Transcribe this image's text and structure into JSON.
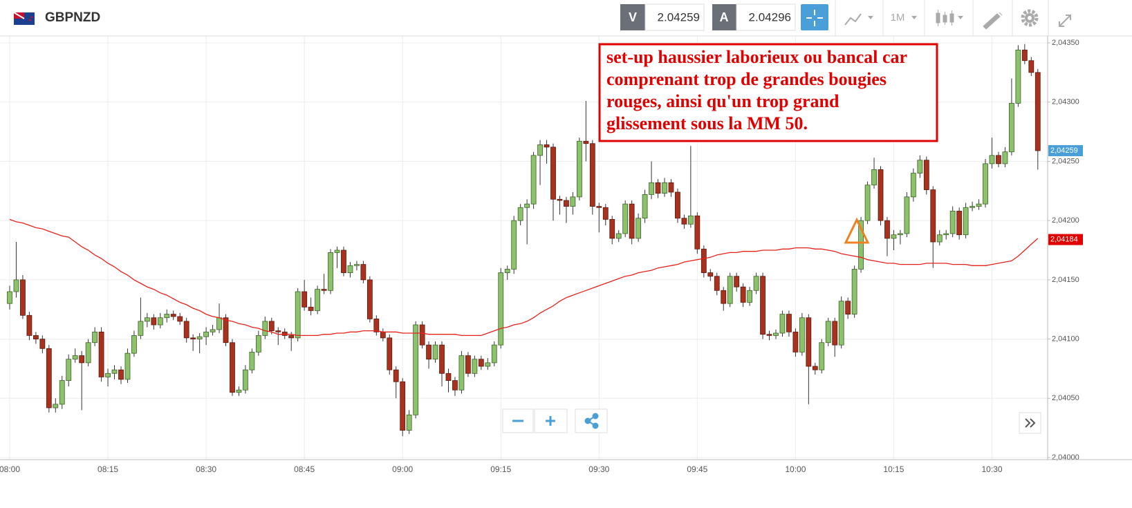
{
  "header": {
    "symbol": "GBPNZD",
    "bid_label": "V",
    "bid": "2.04259",
    "ask_label": "A",
    "ask": "2.04296",
    "timeframe": "1M"
  },
  "chart_data": {
    "type": "candlestick",
    "categories": [
      "08:00",
      null,
      null,
      null,
      null,
      null,
      null,
      null,
      null,
      null,
      null,
      null,
      null,
      null,
      null,
      "08:15",
      null,
      null,
      null,
      null,
      null,
      null,
      null,
      null,
      null,
      null,
      null,
      null,
      null,
      null,
      "08:30",
      null,
      null,
      null,
      null,
      null,
      null,
      null,
      null,
      null,
      null,
      null,
      null,
      null,
      null,
      "08:45",
      null,
      null,
      null,
      null,
      null,
      null,
      null,
      null,
      null,
      null,
      null,
      null,
      null,
      null,
      "09:00",
      null,
      null,
      null,
      null,
      null,
      null,
      null,
      null,
      null,
      null,
      null,
      null,
      null,
      null,
      "09:15",
      null,
      null,
      null,
      null,
      null,
      null,
      null,
      null,
      null,
      null,
      null,
      null,
      null,
      null,
      "09:30",
      null,
      null,
      null,
      null,
      null,
      null,
      null,
      null,
      null,
      null,
      null,
      null,
      null,
      null,
      "09:45",
      null,
      null,
      null,
      null,
      null,
      null,
      null,
      null,
      null,
      null,
      null,
      null,
      null,
      null,
      "10:00",
      null,
      null,
      null,
      null,
      null,
      null,
      null,
      null,
      null,
      null,
      null,
      null,
      null,
      null,
      "10:15",
      null,
      null,
      null,
      null,
      null,
      null,
      null,
      null,
      null,
      null,
      null,
      null,
      null,
      null,
      "10:30",
      null,
      null,
      null,
      null,
      null,
      null,
      null
    ],
    "ohlc": [
      [
        2.0413,
        2.04145,
        2.04125,
        2.0414
      ],
      [
        2.0414,
        2.04182,
        2.04135,
        2.0415
      ],
      [
        2.0415,
        2.04154,
        2.04117,
        2.0412
      ],
      [
        2.0412,
        2.04123,
        2.04099,
        2.04103
      ],
      [
        2.04103,
        2.04106,
        2.04096,
        2.041
      ],
      [
        2.041,
        2.04103,
        2.04088,
        2.04092
      ],
      [
        2.04092,
        2.04095,
        2.04038,
        2.04042
      ],
      [
        2.04042,
        2.0405,
        2.04038,
        2.04045
      ],
      [
        2.04045,
        2.04069,
        2.04041,
        2.04065
      ],
      [
        2.04065,
        2.04087,
        2.0406,
        2.04083
      ],
      [
        2.04083,
        2.04092,
        2.0408,
        2.04086
      ],
      [
        2.04086,
        2.0409,
        2.0404,
        2.0408
      ],
      [
        2.0408,
        2.041,
        2.04077,
        2.04097
      ],
      [
        2.04097,
        2.0411,
        2.04094,
        2.04106
      ],
      [
        2.04106,
        2.0411,
        2.04064,
        2.04068
      ],
      [
        2.04068,
        2.04075,
        2.0406,
        2.04071
      ],
      [
        2.04071,
        2.04078,
        2.04066,
        2.04074
      ],
      [
        2.04074,
        2.04077,
        2.04062,
        2.04066
      ],
      [
        2.04066,
        2.04092,
        2.04063,
        2.04088
      ],
      [
        2.04088,
        2.04107,
        2.04085,
        2.04103
      ],
      [
        2.04103,
        2.04135,
        2.041,
        2.04115
      ],
      [
        2.04115,
        2.04122,
        2.0411,
        2.04118
      ],
      [
        2.04118,
        2.04121,
        2.04108,
        2.04112
      ],
      [
        2.04112,
        2.04122,
        2.04109,
        2.04118
      ],
      [
        2.04118,
        2.04125,
        2.04114,
        2.04121
      ],
      [
        2.04121,
        2.04124,
        2.04116,
        2.04119
      ],
      [
        2.04119,
        2.04122,
        2.04112,
        2.04115
      ],
      [
        2.04115,
        2.04118,
        2.04097,
        2.04101
      ],
      [
        2.04101,
        2.04104,
        2.0409,
        2.041
      ],
      [
        2.041,
        2.04105,
        2.04088,
        2.04102
      ],
      [
        2.04102,
        2.0411,
        2.04095,
        2.04106
      ],
      [
        2.04106,
        2.04112,
        2.04103,
        2.04108
      ],
      [
        2.04108,
        2.0413,
        2.04105,
        2.04118
      ],
      [
        2.04118,
        2.04121,
        2.04094,
        2.04097
      ],
      [
        2.04097,
        2.041,
        2.04052,
        2.04055
      ],
      [
        2.04055,
        2.0406,
        2.04052,
        2.04057
      ],
      [
        2.04057,
        2.04078,
        2.04054,
        2.04074
      ],
      [
        2.04074,
        2.04092,
        2.04071,
        2.04089
      ],
      [
        2.04089,
        2.04107,
        2.04086,
        2.04103
      ],
      [
        2.04103,
        2.04119,
        2.041,
        2.04115
      ],
      [
        2.04115,
        2.04118,
        2.04104,
        2.04107
      ],
      [
        2.04107,
        2.0411,
        2.04095,
        2.04106
      ],
      [
        2.04106,
        2.04109,
        2.041,
        2.04103
      ],
      [
        2.04103,
        2.04106,
        2.0409,
        2.04101
      ],
      [
        2.04101,
        2.04143,
        2.04098,
        2.0414
      ],
      [
        2.0414,
        2.0415,
        2.04124,
        2.04127
      ],
      [
        2.04127,
        2.04135,
        2.0412,
        2.04124
      ],
      [
        2.04124,
        2.04145,
        2.04121,
        2.04142
      ],
      [
        2.04142,
        2.04155,
        2.04138,
        2.04141
      ],
      [
        2.04141,
        2.04176,
        2.04138,
        2.04173
      ],
      [
        2.04173,
        2.04178,
        2.0416,
        2.04175
      ],
      [
        2.04175,
        2.04178,
        2.04153,
        2.04156
      ],
      [
        2.04156,
        2.04165,
        2.04152,
        2.04162
      ],
      [
        2.04162,
        2.04166,
        2.04158,
        2.04163
      ],
      [
        2.04163,
        2.04166,
        2.04147,
        2.0415
      ],
      [
        2.0415,
        2.04153,
        2.04114,
        2.04117
      ],
      [
        2.04117,
        2.0412,
        2.04103,
        2.04106
      ],
      [
        2.04106,
        2.04109,
        2.04098,
        2.04101
      ],
      [
        2.04101,
        2.04104,
        2.0407,
        2.04074
      ],
      [
        2.04074,
        2.04077,
        2.0405,
        2.04064
      ],
      [
        2.04064,
        2.04067,
        2.04018,
        2.04023
      ],
      [
        2.04023,
        2.0404,
        2.0402,
        2.04036
      ],
      [
        2.04036,
        2.04115,
        2.04033,
        2.04112
      ],
      [
        2.04112,
        2.04115,
        2.04092,
        2.04095
      ],
      [
        2.04095,
        2.04098,
        2.04075,
        2.04083
      ],
      [
        2.04083,
        2.04098,
        2.0408,
        2.04095
      ],
      [
        2.04095,
        2.04098,
        2.0406,
        2.04071
      ],
      [
        2.04071,
        2.04075,
        2.04055,
        2.04065
      ],
      [
        2.04065,
        2.04068,
        2.04052,
        2.04057
      ],
      [
        2.04057,
        2.0409,
        2.04054,
        2.04086
      ],
      [
        2.04086,
        2.04089,
        2.04068,
        2.04071
      ],
      [
        2.04071,
        2.04086,
        2.04068,
        2.04083
      ],
      [
        2.04083,
        2.04086,
        2.04074,
        2.04077
      ],
      [
        2.04077,
        2.04084,
        2.04074,
        2.0408
      ],
      [
        2.0408,
        2.04098,
        2.04077,
        2.04095
      ],
      [
        2.04095,
        2.0416,
        2.04092,
        2.04156
      ],
      [
        2.04156,
        2.04162,
        2.0415,
        2.04159
      ],
      [
        2.04159,
        2.04204,
        2.04155,
        2.042
      ],
      [
        2.042,
        2.04214,
        2.04196,
        2.04211
      ],
      [
        2.04211,
        2.04218,
        2.0418,
        2.04214
      ],
      [
        2.04214,
        2.04258,
        2.0421,
        2.04255
      ],
      [
        2.04255,
        2.04268,
        2.0423,
        2.04264
      ],
      [
        2.04264,
        2.04268,
        2.04248,
        2.04262
      ],
      [
        2.04262,
        2.04265,
        2.042,
        2.04218
      ],
      [
        2.04218,
        2.04221,
        2.04205,
        2.04217
      ],
      [
        2.04217,
        2.0422,
        2.04198,
        2.04212
      ],
      [
        2.04212,
        2.04224,
        2.04205,
        2.0422
      ],
      [
        2.0422,
        2.0427,
        2.04217,
        2.04267
      ],
      [
        2.04267,
        2.04301,
        2.0425,
        2.04265
      ],
      [
        2.04265,
        2.04268,
        2.04205,
        2.04212
      ],
      [
        2.04212,
        2.04215,
        2.0419,
        2.04211
      ],
      [
        2.04211,
        2.04214,
        2.04196,
        2.04201
      ],
      [
        2.04201,
        2.04204,
        2.0418,
        2.04185
      ],
      [
        2.04185,
        2.04192,
        2.04182,
        2.04189
      ],
      [
        2.04189,
        2.04217,
        2.04186,
        2.04214
      ],
      [
        2.04214,
        2.04217,
        2.0418,
        2.04185
      ],
      [
        2.04185,
        2.04206,
        2.04182,
        2.04202
      ],
      [
        2.04202,
        2.04226,
        2.04198,
        2.04222
      ],
      [
        2.04222,
        2.0425,
        2.04218,
        2.04232
      ],
      [
        2.04232,
        2.04235,
        2.04219,
        2.04223
      ],
      [
        2.04223,
        2.04236,
        2.0422,
        2.04232
      ],
      [
        2.04232,
        2.04235,
        2.0422,
        2.04224
      ],
      [
        2.04224,
        2.04227,
        2.04198,
        2.04202
      ],
      [
        2.04202,
        2.04205,
        2.04193,
        2.04197
      ],
      [
        2.04197,
        2.04263,
        2.04194,
        2.04204
      ],
      [
        2.04204,
        2.04207,
        2.04172,
        2.04176
      ],
      [
        2.04176,
        2.04179,
        2.04152,
        2.04156
      ],
      [
        2.04156,
        2.04159,
        2.04149,
        2.04153
      ],
      [
        2.04153,
        2.04156,
        2.04137,
        2.04141
      ],
      [
        2.04141,
        2.04144,
        2.04124,
        2.0413
      ],
      [
        2.0413,
        2.04156,
        2.04127,
        2.04153
      ],
      [
        2.04153,
        2.04156,
        2.0414,
        2.04144
      ],
      [
        2.04144,
        2.04147,
        2.04127,
        2.04131
      ],
      [
        2.04131,
        2.04144,
        2.04128,
        2.04141
      ],
      [
        2.04141,
        2.04156,
        2.04138,
        2.04153
      ],
      [
        2.04153,
        2.04156,
        2.041,
        2.04104
      ],
      [
        2.04104,
        2.04107,
        2.04099,
        2.04103
      ],
      [
        2.04103,
        2.04108,
        2.041,
        2.04105
      ],
      [
        2.04105,
        2.04124,
        2.04102,
        2.04121
      ],
      [
        2.04121,
        2.04124,
        2.04102,
        2.04106
      ],
      [
        2.04106,
        2.04109,
        2.04085,
        2.04089
      ],
      [
        2.04089,
        2.04122,
        2.04086,
        2.04118
      ],
      [
        2.04118,
        2.04121,
        2.04045,
        2.04077
      ],
      [
        2.04077,
        2.0408,
        2.0407,
        2.04074
      ],
      [
        2.04074,
        2.041,
        2.04071,
        2.04097
      ],
      [
        2.04097,
        2.04118,
        2.04094,
        2.04115
      ],
      [
        2.04115,
        2.04118,
        2.04085,
        2.04095
      ],
      [
        2.04095,
        2.04136,
        2.04092,
        2.04132
      ],
      [
        2.04132,
        2.04135,
        2.04117,
        2.04121
      ],
      [
        2.04121,
        2.04162,
        2.04118,
        2.04159
      ],
      [
        2.04159,
        2.04203,
        2.04156,
        2.042
      ],
      [
        2.042,
        2.04233,
        2.04197,
        2.0423
      ],
      [
        2.0423,
        2.04253,
        2.04227,
        2.04243
      ],
      [
        2.04243,
        2.04246,
        2.04196,
        2.042
      ],
      [
        2.042,
        2.04203,
        2.0417,
        2.04185
      ],
      [
        2.04185,
        2.04192,
        2.04175,
        2.04188
      ],
      [
        2.04188,
        2.04192,
        2.0418,
        2.04189
      ],
      [
        2.04189,
        2.04224,
        2.04186,
        2.0422
      ],
      [
        2.0422,
        2.04244,
        2.04216,
        2.0424
      ],
      [
        2.0424,
        2.04255,
        2.04236,
        2.04251
      ],
      [
        2.04251,
        2.04254,
        2.04222,
        2.04226
      ],
      [
        2.04226,
        2.04229,
        2.0416,
        2.04182
      ],
      [
        2.04182,
        2.04192,
        2.04179,
        2.04188
      ],
      [
        2.04188,
        2.04192,
        2.04184,
        2.04189
      ],
      [
        2.04189,
        2.04212,
        2.04186,
        2.04208
      ],
      [
        2.04208,
        2.04211,
        2.04184,
        2.04188
      ],
      [
        2.04188,
        2.04215,
        2.04185,
        2.04211
      ],
      [
        2.04211,
        2.04216,
        2.04208,
        2.04212
      ],
      [
        2.04212,
        2.04218,
        2.04209,
        2.04214
      ],
      [
        2.04214,
        2.04252,
        2.04211,
        2.04248
      ],
      [
        2.04248,
        2.0427,
        2.04244,
        2.04255
      ],
      [
        2.04255,
        2.04258,
        2.04245,
        2.04248
      ],
      [
        2.04248,
        2.04262,
        2.04245,
        2.04258
      ],
      [
        2.04258,
        2.0432,
        2.04255,
        2.04299
      ],
      [
        2.04299,
        2.04348,
        2.04296,
        2.04344
      ],
      [
        2.04344,
        2.04349,
        2.04332,
        2.04335
      ],
      [
        2.04335,
        2.04338,
        2.04322,
        2.04325
      ],
      [
        2.04325,
        2.04328,
        2.04243,
        2.04259
      ]
    ],
    "up_color": "#8cc26b",
    "down_color": "#a8321d",
    "ma": {
      "color": "#e8201a",
      "values": [
        2.04201,
        2.04199,
        2.04198,
        2.04196,
        2.04194,
        2.04193,
        2.04191,
        2.04189,
        2.04187,
        2.04186,
        2.04182,
        2.04178,
        2.04175,
        2.04171,
        2.04168,
        2.04164,
        2.04161,
        2.04157,
        2.04154,
        2.0415,
        2.04147,
        2.04144,
        2.04142,
        2.04139,
        2.04137,
        2.04134,
        2.04131,
        2.04129,
        2.04126,
        2.04124,
        2.04121,
        2.04119,
        2.04118,
        2.04116,
        2.04115,
        2.04113,
        2.04112,
        2.0411,
        2.04109,
        2.04107,
        2.04106,
        2.04104,
        2.04104,
        2.04104,
        2.04103,
        2.04103,
        2.04103,
        2.04103,
        2.04104,
        2.04104,
        2.04105,
        2.04105,
        2.04106,
        2.04106,
        2.04107,
        2.04107,
        2.04107,
        2.04106,
        2.04106,
        2.04106,
        2.04105,
        2.04105,
        2.04105,
        2.04105,
        2.04104,
        2.04104,
        2.04104,
        2.04104,
        2.04104,
        2.04103,
        2.04103,
        2.04103,
        2.04103,
        2.04105,
        2.04107,
        2.04109,
        2.0411,
        2.04112,
        2.04113,
        2.04115,
        2.04118,
        2.04122,
        2.04125,
        2.04128,
        2.04132,
        2.04135,
        2.04137,
        2.04139,
        2.04141,
        2.04143,
        2.04145,
        2.04147,
        2.04149,
        2.04151,
        2.04153,
        2.04154,
        2.04156,
        2.04157,
        2.04158,
        2.0416,
        2.04161,
        2.04162,
        2.04163,
        2.04165,
        2.04166,
        2.04167,
        2.04168,
        2.04169,
        2.04171,
        2.04172,
        2.04173,
        2.04173,
        2.04174,
        2.04174,
        2.04174,
        2.04175,
        2.04175,
        2.04175,
        2.04176,
        2.04176,
        2.04177,
        2.04177,
        2.04177,
        2.04176,
        2.04176,
        2.04175,
        2.04174,
        2.04172,
        2.04171,
        2.0417,
        2.04169,
        2.04167,
        2.04166,
        2.04165,
        2.04164,
        2.04164,
        2.04163,
        2.04163,
        2.04163,
        2.04163,
        2.04164,
        2.04164,
        2.04164,
        2.04164,
        2.04163,
        2.04163,
        2.04163,
        2.04162,
        2.04162,
        2.04162,
        2.04163,
        2.04164,
        2.04165,
        2.04166,
        2.0417,
        2.04175,
        2.0418,
        2.04185
      ]
    },
    "ylim": [
      2.04,
      2.0435
    ],
    "yticks": [
      {
        "value": 2.04,
        "label": "2,04000"
      },
      {
        "value": 2.0405,
        "label": "2,04050"
      },
      {
        "value": 2.041,
        "label": "2,04100"
      },
      {
        "value": 2.0415,
        "label": "2,04150"
      },
      {
        "value": 2.042,
        "label": "2,04200"
      },
      {
        "value": 2.0425,
        "label": "2,04250"
      },
      {
        "value": 2.043,
        "label": "2,04300"
      },
      {
        "value": 2.0435,
        "label": "2,04350"
      }
    ],
    "grid": true,
    "price_markers": [
      {
        "value": 2.04259,
        "label": "2,04259",
        "color": "#4a9fd8"
      },
      {
        "value": 2.04184,
        "label": "2,04184",
        "color": "#e00000"
      }
    ],
    "annotation": {
      "color": "#e00000",
      "lines": [
        "set-up haussier laborieux ou bancal car",
        "comprenant trop de grandes bougies",
        "rouges, ainsi qu'un trop grand",
        "glissement sous la MM 50."
      ]
    }
  }
}
